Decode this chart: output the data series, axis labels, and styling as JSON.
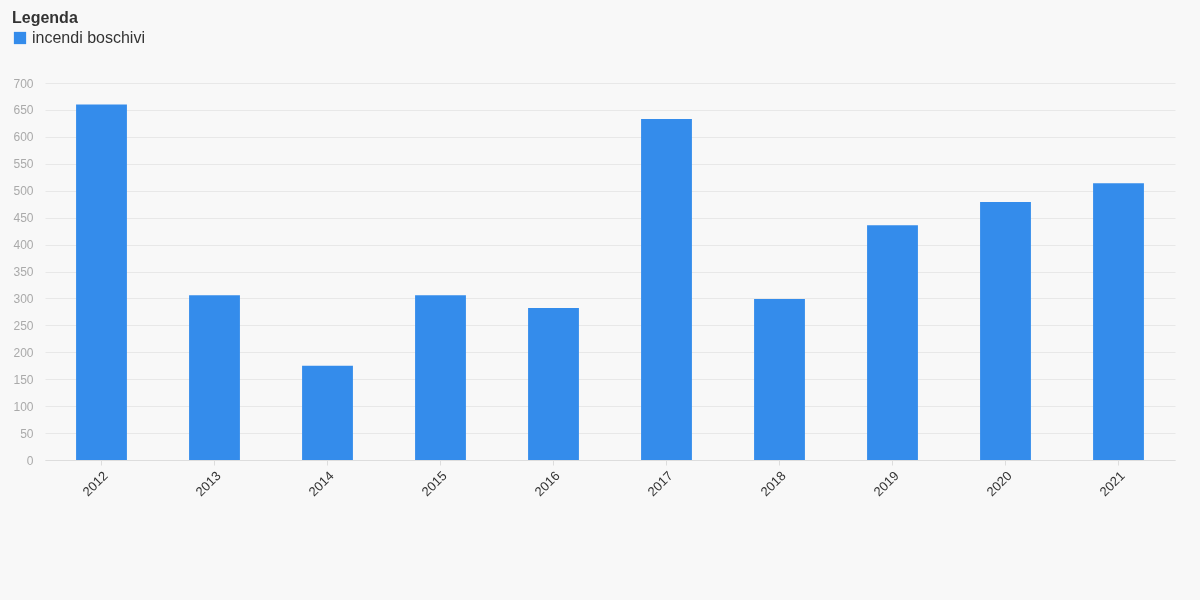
{
  "chart_data": {
    "type": "bar",
    "legend_title": "Legenda",
    "categories": [
      "2012",
      "2013",
      "2014",
      "2015",
      "2016",
      "2017",
      "2018",
      "2019",
      "2020",
      "2021"
    ],
    "series": [
      {
        "name": "incendi boschivi",
        "color": "#348ceb",
        "values": [
          660,
          306,
          175,
          306,
          282,
          633,
          299,
          436,
          479,
          514
        ]
      }
    ],
    "ylim": [
      0,
      700
    ],
    "yticks": [
      0,
      50,
      100,
      150,
      200,
      250,
      300,
      350,
      400,
      450,
      500,
      550,
      600,
      650,
      700
    ],
    "grid": "y",
    "legend": "top left"
  }
}
